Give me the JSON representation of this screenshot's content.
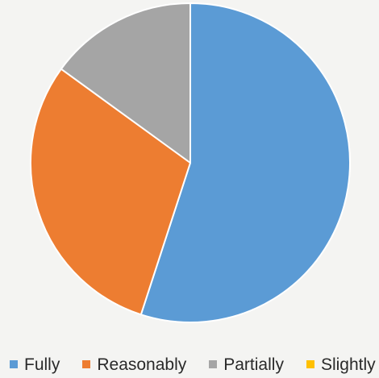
{
  "chart_data": {
    "type": "pie",
    "title": "",
    "categories": [
      "Fully",
      "Reasonably",
      "Partially",
      "Slightly"
    ],
    "values": [
      55,
      30,
      15,
      0
    ],
    "colors": [
      "#5b9bd5",
      "#ed7d31",
      "#a5a5a5",
      "#ffc000"
    ],
    "start_angle_deg": 0,
    "direction": "clockwise",
    "legend_position": "bottom"
  }
}
